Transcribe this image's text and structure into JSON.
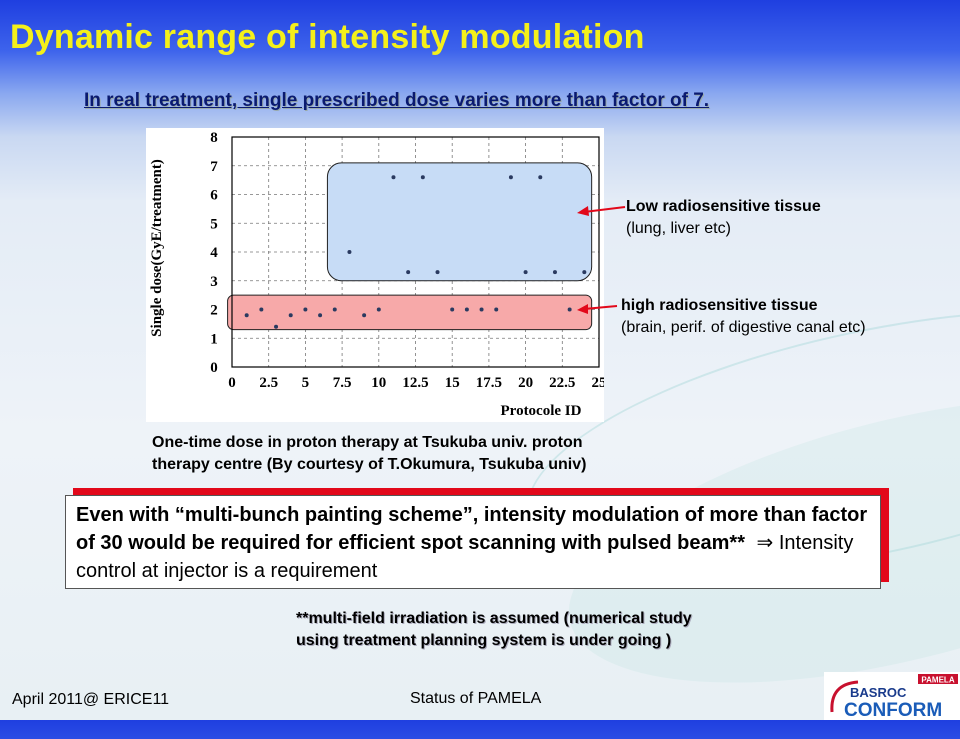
{
  "slide": {
    "title": "Dynamic range of intensity modulation",
    "subtitle": "In real treatment, single prescribed dose varies more than factor of 7.",
    "caption_line1": "One-time dose in proton therapy at  Tsukuba univ.  proton",
    "caption_line2": "therapy centre (By courtesy of T.Okumura, Tsukuba univ)",
    "low_label_title": "Low radiosensitive tissue",
    "low_label_sub": "(lung, liver etc)",
    "high_label_title": "high radiosensitive tissue",
    "high_label_sub": "(brain, perif. of digestive canal etc)",
    "callout_bold": "Even with “multi-bunch painting scheme”, intensity modulation of more than factor of 30 would be required for efficient spot scanning with pulsed beam**",
    "callout_arrow": "⇒",
    "callout_normal": "Intensity control at injector is a requirement",
    "note_line1": "**multi-field irradiation is assumed (numerical study",
    "note_line2": "using treatment planning system is under going )",
    "footer_left": "April 2011@ ERICE11",
    "footer_center": "Status of PAMELA",
    "logo_top": "PAMELA",
    "logo_mid": "BASROC",
    "logo_bottom": "CONFORM"
  },
  "colors": {
    "title": "#f4f01a",
    "low_region": "#c7dcf6",
    "high_region": "#f7a9a9",
    "arrow": "#e2081a",
    "callout_shadow": "#e2081a"
  },
  "chart_data": {
    "type": "scatter",
    "xlabel": "Protocole ID",
    "ylabel": "Single dose(GyE/treatment)",
    "xlim": [
      0,
      25
    ],
    "ylim": [
      0,
      8
    ],
    "x_ticks": [
      "0",
      "2.5",
      "5",
      "7.5",
      "10",
      "12.5",
      "15",
      "17.5",
      "20",
      "22.5",
      "25"
    ],
    "y_ticks": [
      "0",
      "1",
      "2",
      "3",
      "4",
      "5",
      "6",
      "7",
      "8"
    ],
    "grid": true,
    "regions": [
      {
        "name": "low-radiosensitive",
        "x": [
          6.5,
          24.5
        ],
        "y": [
          3.0,
          7.1
        ]
      },
      {
        "name": "high-radiosensitive",
        "x": [
          -0.3,
          24.5
        ],
        "y": [
          1.3,
          2.5
        ]
      }
    ],
    "points": [
      {
        "x": 1,
        "y": 1.8
      },
      {
        "x": 2,
        "y": 2.0
      },
      {
        "x": 3,
        "y": 1.4
      },
      {
        "x": 4,
        "y": 1.8
      },
      {
        "x": 5,
        "y": 2.0
      },
      {
        "x": 6,
        "y": 1.8
      },
      {
        "x": 7,
        "y": 2.0
      },
      {
        "x": 8,
        "y": 4.0
      },
      {
        "x": 9,
        "y": 1.8
      },
      {
        "x": 10,
        "y": 2.0
      },
      {
        "x": 11,
        "y": 6.6
      },
      {
        "x": 12,
        "y": 3.3
      },
      {
        "x": 13,
        "y": 6.6
      },
      {
        "x": 14,
        "y": 3.3
      },
      {
        "x": 15,
        "y": 2.0
      },
      {
        "x": 16,
        "y": 2.0
      },
      {
        "x": 17,
        "y": 2.0
      },
      {
        "x": 18,
        "y": 2.0
      },
      {
        "x": 19,
        "y": 6.6
      },
      {
        "x": 20,
        "y": 3.3
      },
      {
        "x": 21,
        "y": 6.6
      },
      {
        "x": 22,
        "y": 3.3
      },
      {
        "x": 23,
        "y": 2.0
      },
      {
        "x": 24,
        "y": 3.3
      }
    ]
  }
}
